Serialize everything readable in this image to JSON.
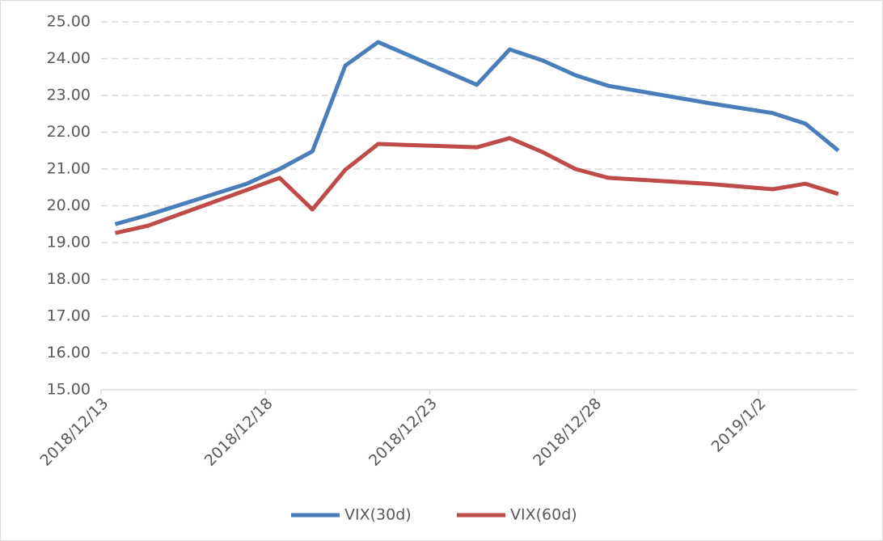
{
  "chart_data": {
    "type": "line",
    "x": [
      "2018/12/13",
      "2018/12/14",
      "2018/12/17",
      "2018/12/18",
      "2018/12/19",
      "2018/12/20",
      "2018/12/21",
      "2018/12/24",
      "2018/12/25",
      "2018/12/26",
      "2018/12/27",
      "2018/12/28",
      "2018/12/31",
      "2019/1/2",
      "2019/1/3",
      "2019/1/4"
    ],
    "series": [
      {
        "name": "VIX(30d)",
        "color": "#4a7ebb",
        "values": [
          19.5,
          19.75,
          20.6,
          21.0,
          21.48,
          23.81,
          24.45,
          23.29,
          24.25,
          23.95,
          23.55,
          23.26,
          22.8,
          22.52,
          22.23,
          21.5
        ]
      },
      {
        "name": "VIX(60d)",
        "color": "#be4b48",
        "values": [
          19.26,
          19.46,
          20.43,
          20.76,
          19.9,
          20.98,
          21.68,
          21.59,
          21.84,
          21.46,
          21.0,
          20.76,
          20.6,
          20.45,
          20.6,
          20.32
        ]
      }
    ],
    "xlim": [
      "2018/12/13",
      "2019/1/5"
    ],
    "xticks": [
      "2018/12/13",
      "2018/12/18",
      "2018/12/23",
      "2018/12/28",
      "2019/1/2"
    ],
    "ylim": [
      15,
      25
    ],
    "yticks": [
      {
        "value": 15,
        "label": "15.00"
      },
      {
        "value": 16,
        "label": "16.00"
      },
      {
        "value": 17,
        "label": "17.00"
      },
      {
        "value": 18,
        "label": "18.00"
      },
      {
        "value": 19,
        "label": "19.00"
      },
      {
        "value": 20,
        "label": "20.00"
      },
      {
        "value": 21,
        "label": "21.00"
      },
      {
        "value": 22,
        "label": "22.00"
      },
      {
        "value": 23,
        "label": "23.00"
      },
      {
        "value": 24,
        "label": "24.00"
      },
      {
        "value": 25,
        "label": "25.00"
      }
    ],
    "grid": true,
    "legend": "bottom"
  }
}
